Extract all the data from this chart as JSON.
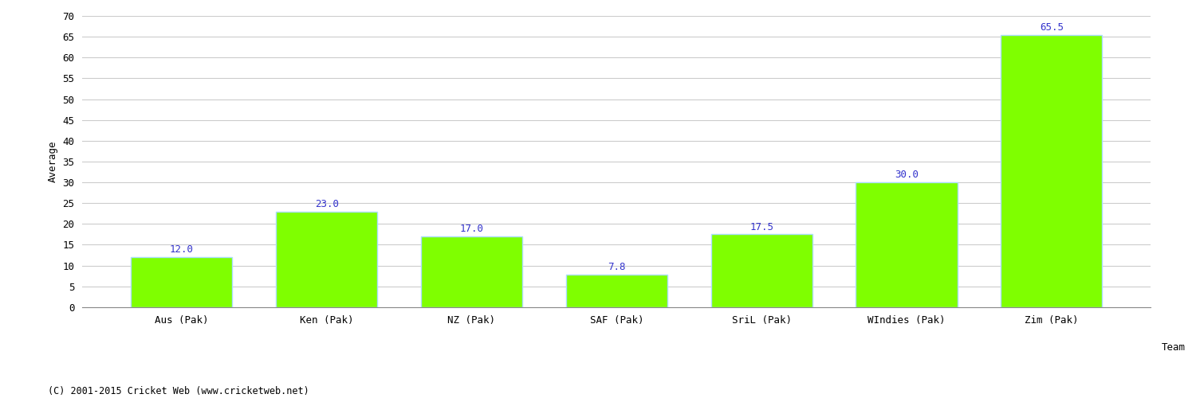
{
  "categories": [
    "Aus (Pak)",
    "Ken (Pak)",
    "NZ (Pak)",
    "SAF (Pak)",
    "SriL (Pak)",
    "WIndies (Pak)",
    "Zim (Pak)"
  ],
  "values": [
    12.0,
    23.0,
    17.0,
    7.8,
    17.5,
    30.0,
    65.5
  ],
  "bar_color": "#7FFF00",
  "bar_edge_color": "#aaddff",
  "label_color": "#3333CC",
  "xlabel": "Team",
  "ylabel": "Average",
  "ylim": [
    0,
    70
  ],
  "yticks": [
    0,
    5,
    10,
    15,
    20,
    25,
    30,
    35,
    40,
    45,
    50,
    55,
    60,
    65,
    70
  ],
  "grid_color": "#cccccc",
  "background_color": "#ffffff",
  "footnote": "(C) 2001-2015 Cricket Web (www.cricketweb.net)",
  "label_fontsize": 9,
  "axis_label_fontsize": 9,
  "tick_fontsize": 9,
  "footnote_fontsize": 8.5
}
